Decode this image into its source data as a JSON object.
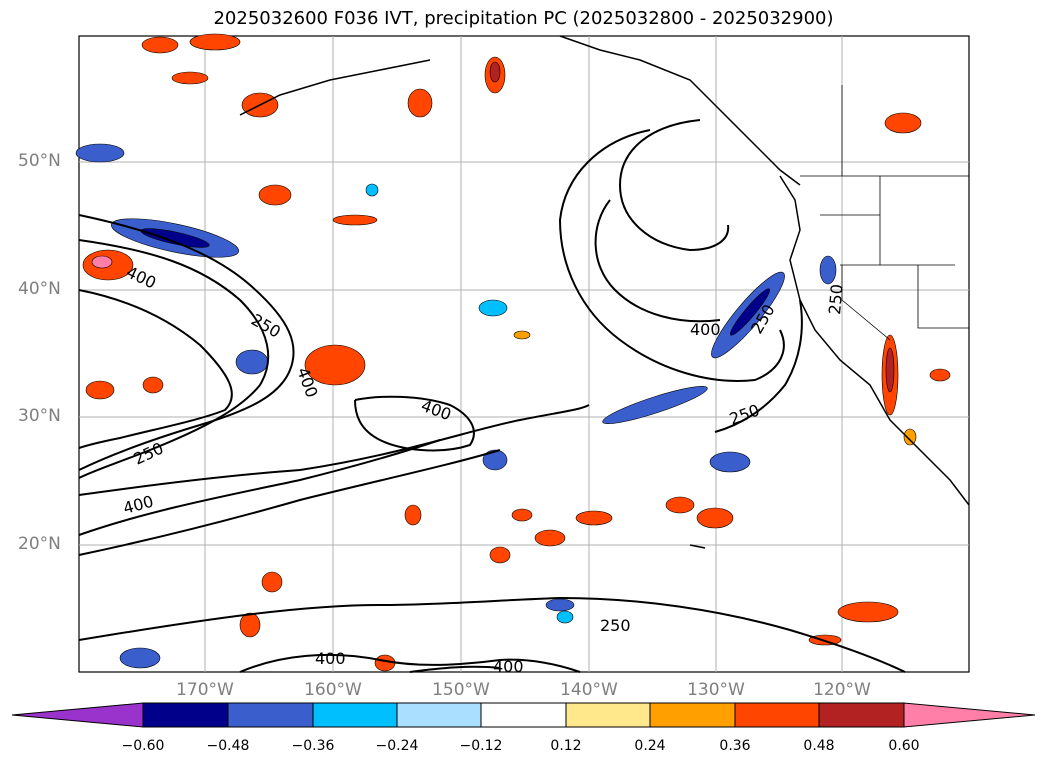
{
  "title": "2025032600 F036 IVT, precipitation PC (2025032800 - 2025032900)",
  "lat_labels": [
    "50°N",
    "40°N",
    "30°N",
    "20°N"
  ],
  "lon_labels": [
    "170°W",
    "160°W",
    "150°W",
    "140°W",
    "130°W",
    "120°W"
  ],
  "contour_labels": [
    "400",
    "250",
    "250",
    "400",
    "400",
    "250",
    "400",
    "400",
    "250",
    "250",
    "250",
    "400",
    "400"
  ],
  "colorbar": {
    "ticks": [
      "−0.60",
      "−0.48",
      "−0.36",
      "−0.24",
      "−0.12",
      "0.12",
      "0.24",
      "0.36",
      "0.48",
      "0.60"
    ],
    "colors": [
      "#9933cc",
      "#00008b",
      "#3a5fcd",
      "#00bfff",
      "#aadfff",
      "#ffffff",
      "#ffe88c",
      "#ff9f00",
      "#ff4500",
      "#b22222",
      "#ff7fa8"
    ]
  }
}
